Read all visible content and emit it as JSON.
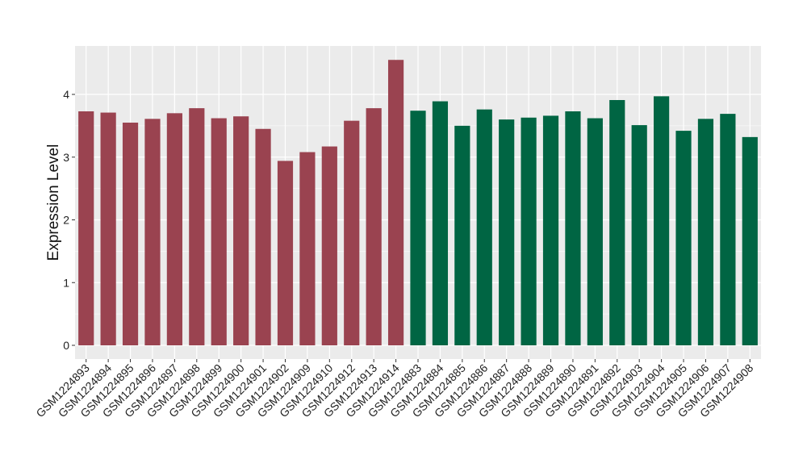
{
  "chart_data": {
    "type": "bar",
    "ylabel": "Expression Level",
    "xlabel": "",
    "ylim": [
      0,
      4.7
    ],
    "y_ticks": [
      0,
      1,
      2,
      3,
      4
    ],
    "grid": true,
    "legend": "none",
    "categories": [
      "GSM1224893",
      "GSM1224894",
      "GSM1224895",
      "GSM1224896",
      "GSM1224897",
      "GSM1224898",
      "GSM1224899",
      "GSM1224900",
      "GSM1224901",
      "GSM1224902",
      "GSM1224909",
      "GSM1224910",
      "GSM1224912",
      "GSM1224913",
      "GSM1224914",
      "GSM1224883",
      "GSM1224884",
      "GSM1224885",
      "GSM1224886",
      "GSM1224887",
      "GSM1224888",
      "GSM1224889",
      "GSM1224890",
      "GSM1224891",
      "GSM1224892",
      "GSM1224903",
      "GSM1224904",
      "GSM1224905",
      "GSM1224906",
      "GSM1224907",
      "GSM1224908"
    ],
    "values": [
      3.73,
      3.71,
      3.55,
      3.61,
      3.7,
      3.78,
      3.62,
      3.65,
      3.45,
      2.94,
      3.08,
      3.17,
      3.58,
      3.78,
      4.55,
      3.74,
      3.89,
      3.5,
      3.76,
      3.6,
      3.63,
      3.66,
      3.73,
      3.62,
      3.91,
      3.51,
      3.97,
      3.42,
      3.61,
      3.69,
      3.32
    ],
    "bar_colors": [
      "#9a4350",
      "#9a4350",
      "#9a4350",
      "#9a4350",
      "#9a4350",
      "#9a4350",
      "#9a4350",
      "#9a4350",
      "#9a4350",
      "#9a4350",
      "#9a4350",
      "#9a4350",
      "#9a4350",
      "#9a4350",
      "#9a4350",
      "#006543",
      "#006543",
      "#006543",
      "#006543",
      "#006543",
      "#006543",
      "#006543",
      "#006543",
      "#006543",
      "#006543",
      "#006543",
      "#006543",
      "#006543",
      "#006543",
      "#006543",
      "#006543"
    ],
    "panel_background": "#ebebeb",
    "grid_color": "#ffffff"
  }
}
